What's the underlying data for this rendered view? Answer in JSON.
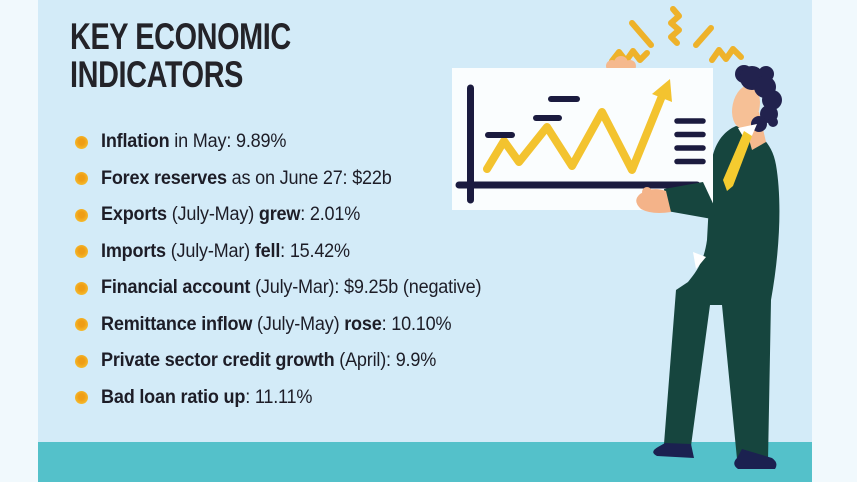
{
  "title": {
    "line1": "KEY ECONOMIC",
    "line2": "INDICATORS"
  },
  "indicators": [
    {
      "segments": [
        {
          "text": "Inflation",
          "bold": true
        },
        {
          "text": " in May: 9.89%",
          "bold": false
        }
      ]
    },
    {
      "segments": [
        {
          "text": "Forex reserves",
          "bold": true
        },
        {
          "text": " as on June 27: $22b",
          "bold": false
        }
      ]
    },
    {
      "segments": [
        {
          "text": "Exports",
          "bold": true
        },
        {
          "text": " (July-May) ",
          "bold": false
        },
        {
          "text": "grew",
          "bold": true
        },
        {
          "text": ": 2.01%",
          "bold": false
        }
      ]
    },
    {
      "segments": [
        {
          "text": "Imports",
          "bold": true
        },
        {
          "text": " (July-Mar) ",
          "bold": false
        },
        {
          "text": "fell",
          "bold": true
        },
        {
          "text": ": 15.42%",
          "bold": false
        }
      ]
    },
    {
      "segments": [
        {
          "text": "Financial account",
          "bold": true
        },
        {
          "text": " (July-Mar): $9.25b (negative)",
          "bold": false
        }
      ]
    },
    {
      "segments": [
        {
          "text": "Remittance inflow",
          "bold": true
        },
        {
          "text": " (July-May) ",
          "bold": false
        },
        {
          "text": "rose",
          "bold": true
        },
        {
          "text": ": 10.10%",
          "bold": false
        }
      ]
    },
    {
      "segments": [
        {
          "text": "Private sector credit growth",
          "bold": true
        },
        {
          "text": " (April): 9.9%",
          "bold": false
        }
      ]
    },
    {
      "segments": [
        {
          "text": "Bad loan ratio up",
          "bold": true
        },
        {
          "text": ": 11.11%",
          "bold": false
        }
      ]
    }
  ],
  "chart_data": {
    "type": "table",
    "title": "KEY ECONOMIC INDICATORS",
    "columns": [
      "indicator",
      "period",
      "value"
    ],
    "rows": [
      [
        "Inflation",
        "May",
        "9.89%"
      ],
      [
        "Forex reserves",
        "as on June 27",
        "$22b"
      ],
      [
        "Exports (grew)",
        "July-May",
        "2.01%"
      ],
      [
        "Imports (fell)",
        "July-Mar",
        "15.42%"
      ],
      [
        "Financial account",
        "July-Mar",
        "$9.25b (negative)"
      ],
      [
        "Remittance inflow (rose)",
        "July-May",
        "10.10%"
      ],
      [
        "Private sector credit growth",
        "April",
        "9.9%"
      ],
      [
        "Bad loan ratio (up)",
        "",
        "11.11%"
      ]
    ]
  },
  "illustration": {
    "board": "line-chart-board-with-upward-arrow",
    "person": "businessman-in-green-suit-holding-chart",
    "decor": "yellow-excitement-sparks"
  },
  "colors": {
    "outer_background": "#f1f9fd",
    "panel_background": "#d3ebf8",
    "floor": "#54c1ca",
    "bullet": "#f2ab1c",
    "text": "#1d1d27",
    "board": "#fafdfe",
    "chart_line_yellow": "#f3c32f",
    "navy": "#1b1b3f",
    "suit_green": "#16453e",
    "skin": "#f5b98e",
    "tie_yellow": "#f4cb2f",
    "hair_navy": "#22224e"
  }
}
